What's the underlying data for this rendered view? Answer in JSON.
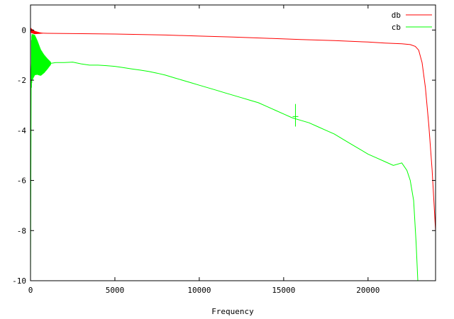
{
  "chart_data": {
    "type": "line",
    "title": "",
    "xlabel": "Frequency",
    "ylabel": "",
    "xlim": [
      0,
      24000
    ],
    "ylim": [
      -10,
      1
    ],
    "xticks": [
      0,
      5000,
      10000,
      15000,
      20000
    ],
    "yticks": [
      0,
      -2,
      -4,
      -6,
      -8,
      -10
    ],
    "grid": false,
    "legend_position": "top-right",
    "series": [
      {
        "name": "db",
        "color": "#ff0000",
        "x": [
          0,
          100,
          250,
          500,
          1000,
          2000,
          5000,
          8000,
          10000,
          12000,
          14000,
          16000,
          18000,
          20000,
          21000,
          22000,
          22500,
          22800,
          23000,
          23200,
          23400,
          23600,
          23800,
          24000
        ],
        "y": [
          0,
          -0.05,
          -0.1,
          -0.12,
          -0.13,
          -0.14,
          -0.16,
          -0.2,
          -0.24,
          -0.28,
          -0.33,
          -0.38,
          -0.42,
          -0.48,
          -0.52,
          -0.55,
          -0.58,
          -0.65,
          -0.8,
          -1.3,
          -2.3,
          -3.8,
          -5.6,
          -8.0
        ]
      },
      {
        "name": "cb",
        "color": "#00ff00",
        "x": [
          0,
          40,
          80,
          150,
          250,
          400,
          600,
          800,
          1000,
          1500,
          2000,
          2500,
          3000,
          3500,
          4000,
          4500,
          5000,
          5500,
          6000,
          6500,
          7000,
          7500,
          8000,
          8500,
          9000,
          9500,
          10000,
          10500,
          11000,
          11500,
          12000,
          12500,
          13000,
          13500,
          14000,
          14500,
          15000,
          15500,
          16000,
          16500,
          17000,
          17500,
          18000,
          18500,
          19000,
          19500,
          20000,
          20500,
          21000,
          21500,
          22000,
          22300,
          22500,
          22700,
          22850,
          22950
        ],
        "y": [
          -10,
          -1.6,
          -1.1,
          -1.05,
          -1.0,
          -1.1,
          -1.3,
          -1.35,
          -1.35,
          -1.3,
          -1.3,
          -1.28,
          -1.35,
          -1.4,
          -1.4,
          -1.42,
          -1.45,
          -1.5,
          -1.55,
          -1.6,
          -1.65,
          -1.72,
          -1.8,
          -1.9,
          -2.0,
          -2.1,
          -2.2,
          -2.3,
          -2.4,
          -2.5,
          -2.6,
          -2.7,
          -2.8,
          -2.9,
          -3.05,
          -3.2,
          -3.35,
          -3.5,
          -3.6,
          -3.7,
          -3.85,
          -4.0,
          -4.15,
          -4.35,
          -4.55,
          -4.75,
          -4.95,
          -5.1,
          -5.25,
          -5.4,
          -5.3,
          -5.6,
          -6.0,
          -6.8,
          -8.5,
          -10
        ]
      }
    ],
    "annotations": [
      {
        "series": "cb",
        "x": 15700,
        "y_center": -3.45,
        "y_low": -3.85,
        "y_high": -2.95
      }
    ]
  }
}
